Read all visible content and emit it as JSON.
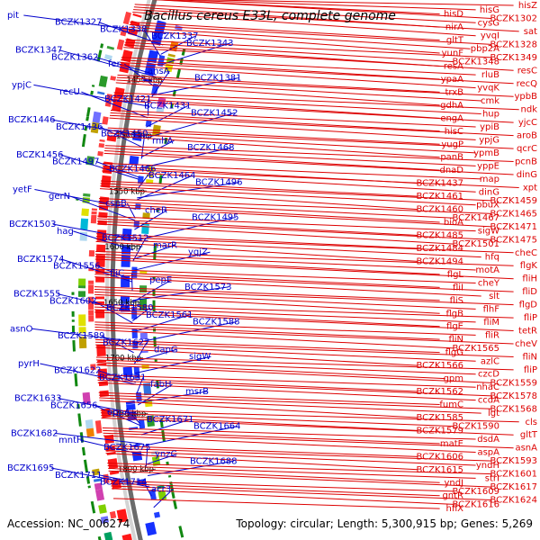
{
  "title": "Bacillus cereus E33L, complete genome",
  "footer": {
    "accession": "Accession: NC_006274",
    "summary": "Topology: circular; Length: 5,300,915 bp; Genes: 5,269"
  },
  "colors": {
    "left_genes": "#0000cc",
    "right_genes": "#dd0000",
    "axis_dark": "#6b6b6b",
    "axis_light": "#d4d4d4"
  },
  "positions": [
    "1450 kbp",
    "1500 kbp",
    "1550 kbp",
    "1600 kbp",
    "1650 kbp",
    "1700 kbp",
    "1750 kbp",
    "1800 kbp"
  ],
  "left_labels": [
    "pit",
    "BCZK1327",
    "BCZK1338",
    "BCZK1337",
    "BCZK1343",
    "BCZK1347",
    "BCZK1362",
    "fer",
    "ansA",
    "BCZK1381",
    "ypjC",
    "recU",
    "BCZK1421",
    "BCZK1431",
    "BCZK1452",
    "BCZK1446",
    "BCZK1436",
    "BCZK1450",
    "rnhA",
    "BCZK1468",
    "BCZK1456",
    "BCZK1497",
    "BCZK1466",
    "BCZK1464",
    "BCZK1496",
    "yetF",
    "gerN",
    "cspB",
    "cheR",
    "BCZK1495",
    "BCZK1503",
    "hag",
    "BCZK1512",
    "marR",
    "yqjZ",
    "BCZK1574",
    "BCZK1556",
    "fliC",
    "pepE",
    "BCZK1573",
    "BCZK1555",
    "BCZK1602",
    "BCZK1580",
    "BCZK1561",
    "BCZK1588",
    "asnO",
    "BCZK1589",
    "BCZK1627",
    "dapG",
    "sigW",
    "pyrH",
    "BCZK1622",
    "BCZK1631",
    "fabH",
    "msrB",
    "BCZK1633",
    "BCZK1656",
    "oppA",
    "BCZK1671",
    "BCZK1664",
    "BCZK1682",
    "mntH",
    "BCZK1675",
    "ynzC",
    "BCZK1688",
    "BCZK1695",
    "BCZK1711",
    "BCZK1714",
    "acr3"
  ],
  "right_labels": [
    "hisZ",
    "hisG",
    "hisD",
    "BCZK1302",
    "cysG",
    "nirA",
    "sat",
    "yvqI",
    "gltT",
    "BCZK1328",
    "pbp2A",
    "yunF",
    "BCZK1349",
    "BCZK1348",
    "resA",
    "resC",
    "rluB",
    "ypaA",
    "recQ",
    "yvqK",
    "trxB",
    "ypbB",
    "cmk",
    "gdhA",
    "ndk",
    "hup",
    "engA",
    "yjcC",
    "ypiB",
    "hisC",
    "aroB",
    "ypjG",
    "yugP",
    "qcrC",
    "ypmB",
    "panB",
    "pcnB",
    "yppE",
    "dnaD",
    "dinG",
    "map",
    "BCZK1437",
    "xpt",
    "dinG",
    "BCZK1461",
    "BCZK1459",
    "pbuX",
    "BCZK1460",
    "BCZK1465",
    "BCZK1467",
    "bioA",
    "BCZK1471",
    "sigW",
    "BCZK1485",
    "BCZK1475",
    "BCZK1501",
    "BCZK1484",
    "cheC",
    "hfq",
    "BCZK1494",
    "flgK",
    "motA",
    "flgL",
    "fliH",
    "cheY",
    "fliI",
    "fliD",
    "slt",
    "fliS",
    "flgD",
    "flhF",
    "flgB",
    "fliP",
    "fliM",
    "flgE",
    "tetR",
    "fliR",
    "fliN",
    "cheV",
    "BCZK1565",
    "flgG",
    "fliN",
    "azlC",
    "BCZK1566",
    "fliP",
    "czcD",
    "gpm",
    "BCZK1559",
    "nhaC",
    "BCZK1562",
    "BCZK1578",
    "ccdA",
    "fumC",
    "BCZK1568",
    "lgt",
    "BCZK1585",
    "cls",
    "BCZK1590",
    "BCZK1579",
    "gltT",
    "dsdA",
    "matE",
    "asnA",
    "aspA",
    "BCZK1606",
    "BCZK1593",
    "yndH",
    "BCZK1615",
    "BCZK1601",
    "strI",
    "yndJ",
    "BCZK1617",
    "BCZK1609",
    "gntR",
    "BCZK1624",
    "BCZK1616",
    "hflX"
  ]
}
